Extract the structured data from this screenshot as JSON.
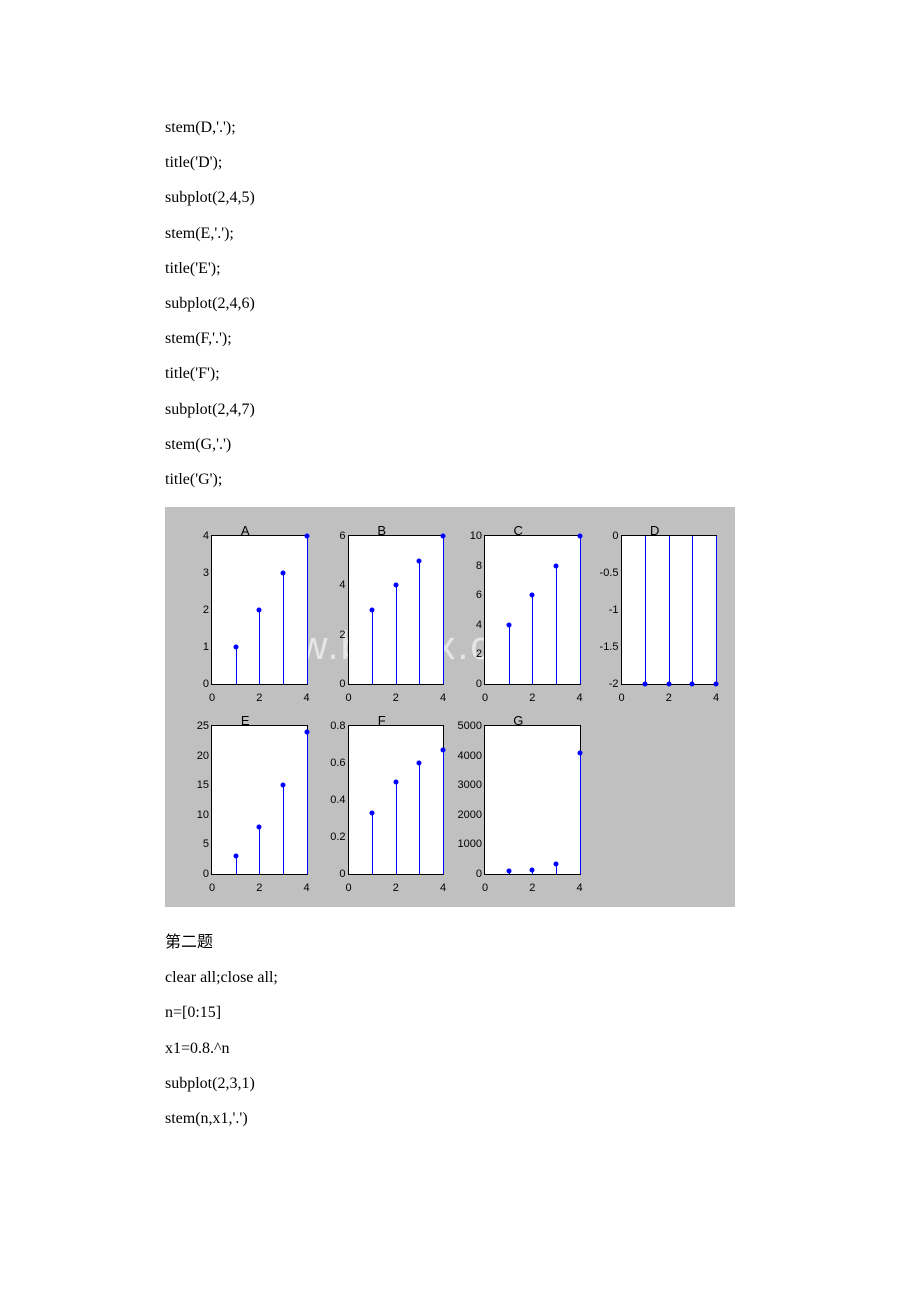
{
  "code_lines_before": [
    "stem(D,'.');",
    "title('D');",
    "subplot(2,4,5)",
    "stem(E,'.');",
    "title('E');",
    "subplot(2,4,6)",
    "stem(F,'.');",
    "title('F');",
    "subplot(2,4,7)",
    "stem(G,'.')",
    "title('G');"
  ],
  "code_lines_after": [
    "第二题",
    "clear all;close all;",
    "n=[0:15]",
    "x1=0.8.^n",
    "subplot(2,3,1)",
    "stem(n,x1,'.')"
  ],
  "figure": {
    "bg": "#c0c0c0",
    "stem_color": "#0000ff",
    "subplots": [
      {
        "title": "A",
        "ylim": [
          0,
          4
        ],
        "yticks": [
          0,
          1,
          2,
          3,
          4
        ],
        "xlim": [
          0,
          4
        ],
        "xticks": [
          0,
          2,
          4
        ],
        "stems": [
          [
            1,
            1
          ],
          [
            2,
            2
          ],
          [
            3,
            3
          ],
          [
            4,
            4
          ]
        ]
      },
      {
        "title": "B",
        "ylim": [
          0,
          6
        ],
        "yticks": [
          0,
          2,
          4,
          6
        ],
        "xlim": [
          0,
          4
        ],
        "xticks": [
          0,
          2,
          4
        ],
        "stems": [
          [
            1,
            3
          ],
          [
            2,
            4
          ],
          [
            3,
            5
          ],
          [
            4,
            6
          ]
        ]
      },
      {
        "title": "C",
        "ylim": [
          0,
          10
        ],
        "yticks": [
          0,
          2,
          4,
          6,
          8,
          10
        ],
        "xlim": [
          0,
          4
        ],
        "xticks": [
          0,
          2,
          4
        ],
        "stems": [
          [
            1,
            4
          ],
          [
            2,
            6
          ],
          [
            3,
            8
          ],
          [
            4,
            10
          ]
        ]
      },
      {
        "title": "D",
        "ylim": [
          -2,
          0
        ],
        "yticks": [
          -2,
          -1.5,
          -1,
          -0.5,
          0
        ],
        "xlim": [
          0,
          4
        ],
        "xticks": [
          0,
          2,
          4
        ],
        "stems": [
          [
            1,
            -2
          ],
          [
            2,
            -2
          ],
          [
            3,
            -2
          ],
          [
            4,
            -2
          ]
        ],
        "invert": true
      },
      {
        "title": "E",
        "ylim": [
          0,
          25
        ],
        "yticks": [
          0,
          5,
          10,
          15,
          20,
          25
        ],
        "xlim": [
          0,
          4
        ],
        "xticks": [
          0,
          2,
          4
        ],
        "stems": [
          [
            1,
            3
          ],
          [
            2,
            8
          ],
          [
            3,
            15
          ],
          [
            4,
            24
          ]
        ]
      },
      {
        "title": "F",
        "ylim": [
          0,
          0.8
        ],
        "yticks": [
          0,
          0.2,
          0.4,
          0.6,
          0.8
        ],
        "xlim": [
          0,
          4
        ],
        "xticks": [
          0,
          2,
          4
        ],
        "stems": [
          [
            1,
            0.33
          ],
          [
            2,
            0.5
          ],
          [
            3,
            0.6
          ],
          [
            4,
            0.67
          ]
        ]
      },
      {
        "title": "G",
        "ylim": [
          0,
          5000
        ],
        "yticks": [
          0,
          1000,
          2000,
          3000,
          4000,
          5000
        ],
        "xlim": [
          0,
          4
        ],
        "xticks": [
          0,
          2,
          4
        ],
        "stems": [
          [
            1,
            100
          ],
          [
            2,
            150
          ],
          [
            3,
            350
          ],
          [
            4,
            4100
          ]
        ]
      }
    ]
  }
}
